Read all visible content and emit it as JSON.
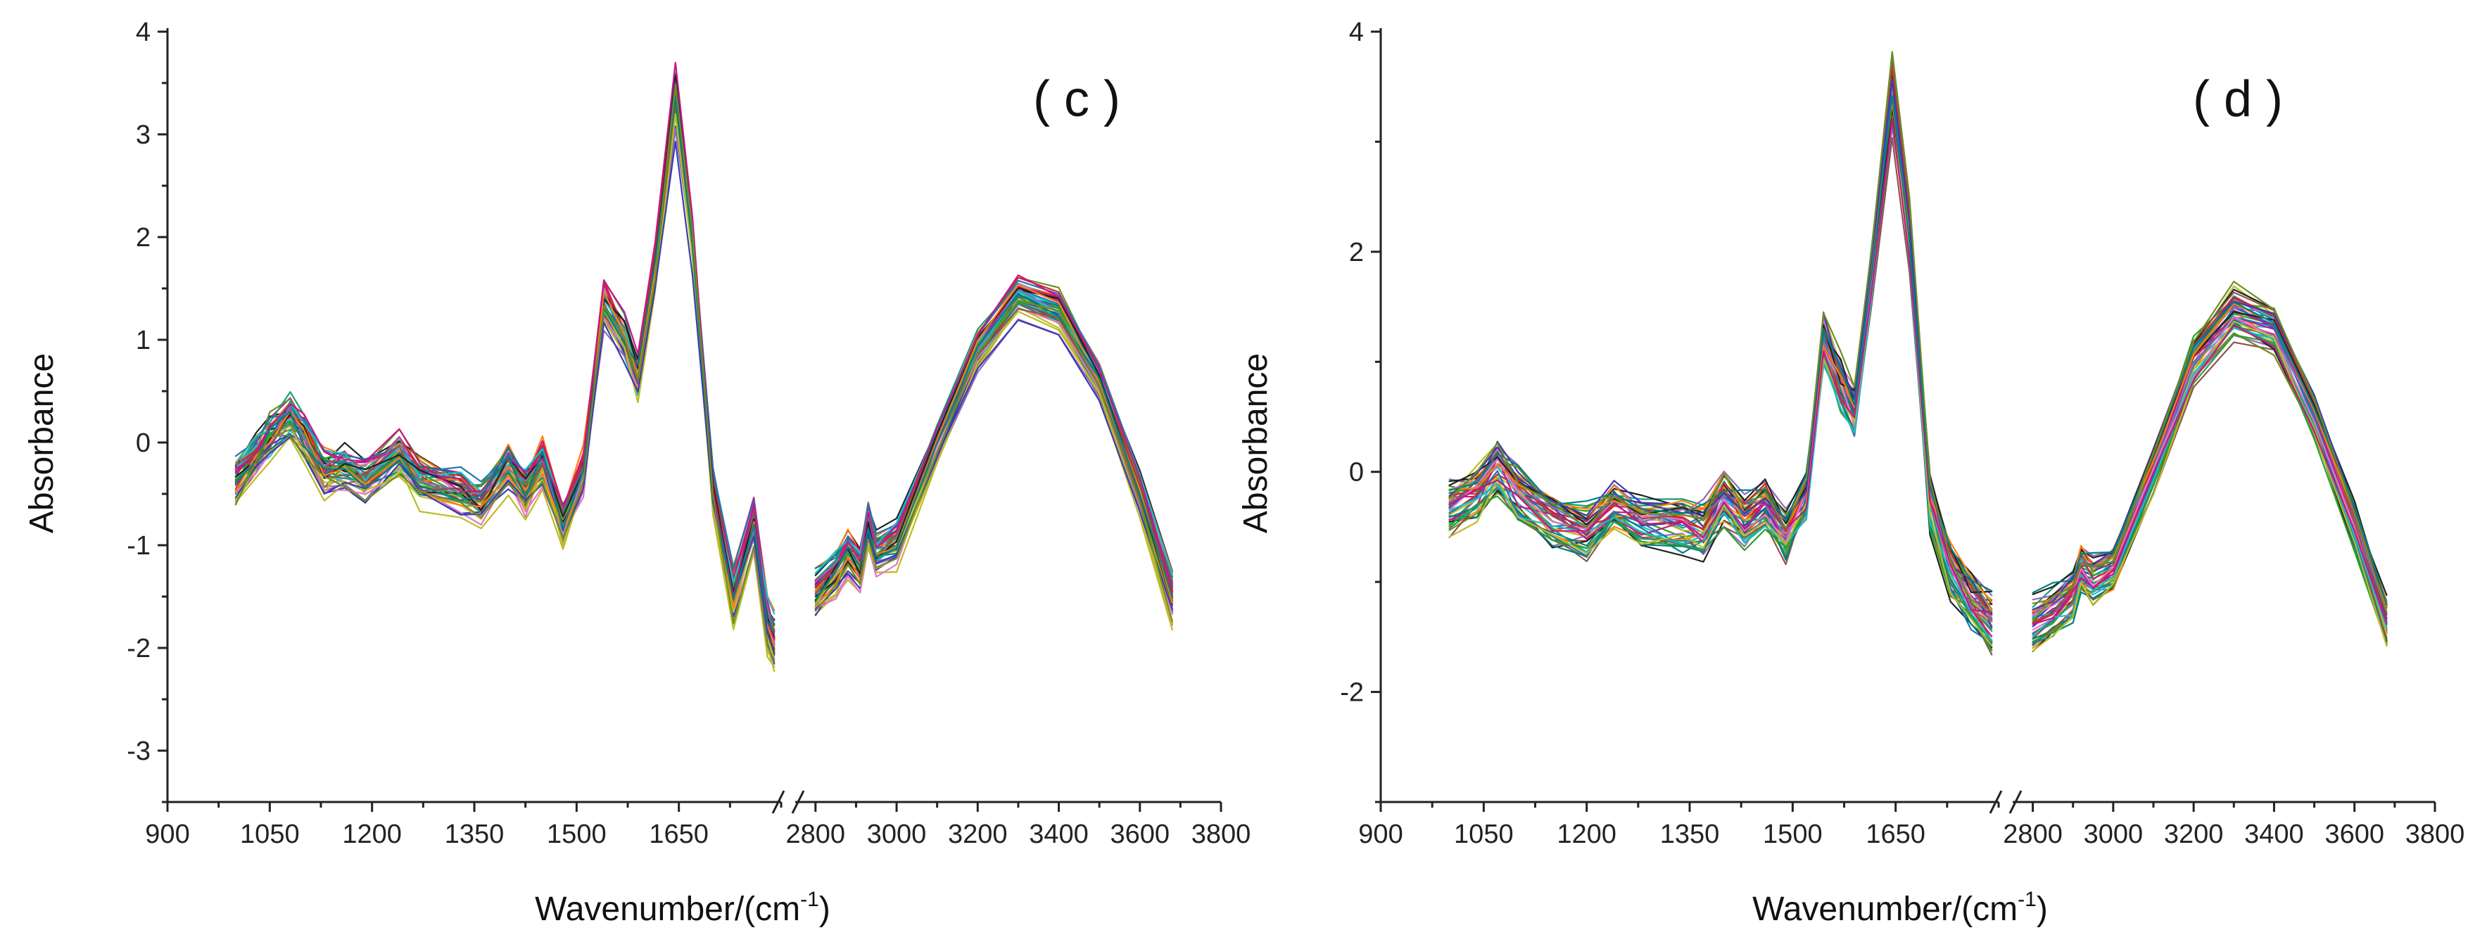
{
  "chart_data": [
    {
      "type": "line",
      "panel_label": "( c )",
      "xlabel": "Wavenumber/(cm",
      "xlabel_sup": "-1",
      "xlabel_tail": ")",
      "ylabel": "Absorbance",
      "ylim": [
        -3.5,
        4
      ],
      "yticks": [
        -3,
        -2,
        -1,
        0,
        1,
        2,
        3,
        4
      ],
      "x_segments": [
        {
          "range": [
            900,
            1800
          ],
          "ticks": [
            900,
            1050,
            1200,
            1350,
            1500,
            1650
          ]
        },
        {
          "range": [
            2750,
            3800
          ],
          "ticks": [
            2800,
            3000,
            3200,
            3400,
            3600,
            3800
          ]
        }
      ],
      "axis_break": "between 1800 and 2750",
      "grid": false,
      "n_series": 45,
      "profile": [
        {
          "x": 1000,
          "y": -0.4
        },
        {
          "x": 1030,
          "y": -0.15
        },
        {
          "x": 1050,
          "y": 0.05
        },
        {
          "x": 1080,
          "y": 0.25
        },
        {
          "x": 1100,
          "y": 0.05
        },
        {
          "x": 1130,
          "y": -0.3
        },
        {
          "x": 1160,
          "y": -0.25
        },
        {
          "x": 1190,
          "y": -0.4
        },
        {
          "x": 1240,
          "y": -0.1
        },
        {
          "x": 1270,
          "y": -0.4
        },
        {
          "x": 1330,
          "y": -0.5
        },
        {
          "x": 1360,
          "y": -0.6
        },
        {
          "x": 1400,
          "y": -0.25
        },
        {
          "x": 1425,
          "y": -0.5
        },
        {
          "x": 1450,
          "y": -0.2
        },
        {
          "x": 1480,
          "y": -0.8
        },
        {
          "x": 1510,
          "y": -0.3
        },
        {
          "x": 1540,
          "y": 1.4
        },
        {
          "x": 1570,
          "y": 1.0
        },
        {
          "x": 1590,
          "y": 0.65
        },
        {
          "x": 1615,
          "y": 1.7
        },
        {
          "x": 1645,
          "y": 3.4
        },
        {
          "x": 1670,
          "y": 2.0
        },
        {
          "x": 1700,
          "y": -0.5
        },
        {
          "x": 1730,
          "y": -1.5
        },
        {
          "x": 1760,
          "y": -0.8
        },
        {
          "x": 1780,
          "y": -1.8
        },
        {
          "x": 1790,
          "y": -2.0
        },
        {
          "x": 2800,
          "y": -1.5
        },
        {
          "x": 2850,
          "y": -1.3
        },
        {
          "x": 2880,
          "y": -1.1
        },
        {
          "x": 2910,
          "y": -1.25
        },
        {
          "x": 2930,
          "y": -0.8
        },
        {
          "x": 2950,
          "y": -1.1
        },
        {
          "x": 3000,
          "y": -1.0
        },
        {
          "x": 3100,
          "y": 0.0
        },
        {
          "x": 3200,
          "y": 0.9
        },
        {
          "x": 3300,
          "y": 1.45
        },
        {
          "x": 3400,
          "y": 1.3
        },
        {
          "x": 3500,
          "y": 0.6
        },
        {
          "x": 3600,
          "y": -0.5
        },
        {
          "x": 3680,
          "y": -1.55
        }
      ]
    },
    {
      "type": "line",
      "panel_label": "( d )",
      "xlabel": "Wavenumber/(cm",
      "xlabel_sup": "-1",
      "xlabel_tail": ")",
      "ylabel": "Absorbance",
      "ylim": [
        -3,
        4
      ],
      "yticks": [
        -2,
        0,
        2,
        4
      ],
      "x_segments": [
        {
          "range": [
            900,
            1800
          ],
          "ticks": [
            900,
            1050,
            1200,
            1350,
            1500,
            1650
          ]
        },
        {
          "range": [
            2750,
            3800
          ],
          "ticks": [
            2800,
            3000,
            3200,
            3400,
            3600,
            3800
          ]
        }
      ],
      "axis_break": "between 1800 and 2750",
      "grid": false,
      "n_series": 45,
      "profile": [
        {
          "x": 1000,
          "y": -0.35
        },
        {
          "x": 1040,
          "y": -0.2
        },
        {
          "x": 1070,
          "y": 0.05
        },
        {
          "x": 1100,
          "y": -0.2
        },
        {
          "x": 1150,
          "y": -0.45
        },
        {
          "x": 1200,
          "y": -0.55
        },
        {
          "x": 1240,
          "y": -0.3
        },
        {
          "x": 1280,
          "y": -0.45
        },
        {
          "x": 1340,
          "y": -0.5
        },
        {
          "x": 1370,
          "y": -0.55
        },
        {
          "x": 1400,
          "y": -0.25
        },
        {
          "x": 1430,
          "y": -0.45
        },
        {
          "x": 1460,
          "y": -0.3
        },
        {
          "x": 1490,
          "y": -0.6
        },
        {
          "x": 1520,
          "y": -0.2
        },
        {
          "x": 1545,
          "y": 1.2
        },
        {
          "x": 1570,
          "y": 0.8
        },
        {
          "x": 1590,
          "y": 0.55
        },
        {
          "x": 1615,
          "y": 1.8
        },
        {
          "x": 1645,
          "y": 3.45
        },
        {
          "x": 1670,
          "y": 2.2
        },
        {
          "x": 1700,
          "y": -0.3
        },
        {
          "x": 1730,
          "y": -0.9
        },
        {
          "x": 1760,
          "y": -1.2
        },
        {
          "x": 1790,
          "y": -1.4
        },
        {
          "x": 2800,
          "y": -1.4
        },
        {
          "x": 2850,
          "y": -1.3
        },
        {
          "x": 2900,
          "y": -1.15
        },
        {
          "x": 2920,
          "y": -0.9
        },
        {
          "x": 2950,
          "y": -1.0
        },
        {
          "x": 3000,
          "y": -0.9
        },
        {
          "x": 3100,
          "y": 0.0
        },
        {
          "x": 3200,
          "y": 1.0
        },
        {
          "x": 3300,
          "y": 1.45
        },
        {
          "x": 3400,
          "y": 1.3
        },
        {
          "x": 3500,
          "y": 0.5
        },
        {
          "x": 3600,
          "y": -0.5
        },
        {
          "x": 3680,
          "y": -1.4
        }
      ]
    }
  ],
  "colors": {
    "axis": "#222222",
    "series_palette": [
      "#1a9e77",
      "#d62728",
      "#1f77b4",
      "#2ca02c",
      "#9467bd",
      "#e377c2",
      "#17becf",
      "#8c564b",
      "#bcbd22",
      "#222222",
      "#ff7f0e",
      "#3b3bb3",
      "#c71585",
      "#008080",
      "#6b8e23"
    ]
  }
}
